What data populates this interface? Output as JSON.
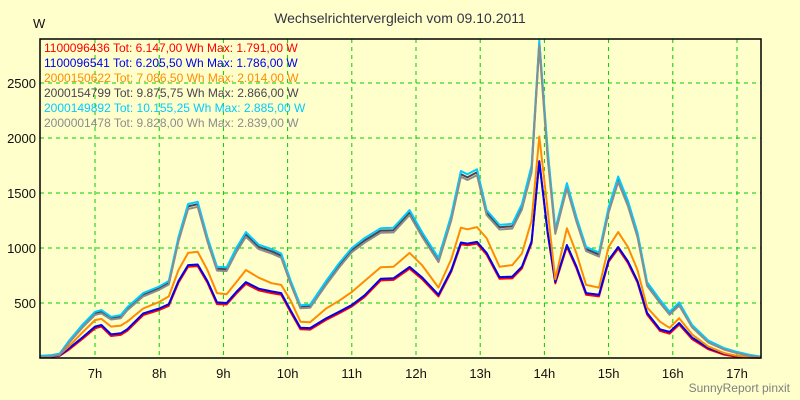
{
  "page": {
    "background": "#FFFFCC",
    "footer_credit": "SunnyReport pinxit",
    "footer_color": "#808080"
  },
  "chart_data": {
    "type": "line",
    "title": "Wechselrichtervergleich vom 09.10.2011",
    "title_color": "#333344",
    "ylabel": "W",
    "xlabel": "",
    "grid": true,
    "grid_color": "#00CC00",
    "frame_color": "#000000",
    "legend_position": "top-left-inside",
    "xlim": [
      6.143,
      17.374
    ],
    "ylim": [
      0,
      2900
    ],
    "x_ticks": [
      7,
      8,
      9,
      10,
      11,
      12,
      13,
      14,
      15,
      16,
      17
    ],
    "x_tick_labels": [
      "7h",
      "8h",
      "9h",
      "10h",
      "11h",
      "12h",
      "13h",
      "14h",
      "15h",
      "16h",
      "17h"
    ],
    "y_ticks": [
      500,
      1000,
      1500,
      2000,
      2500
    ],
    "y_tick_labels": [
      "500",
      "1000",
      "1500",
      "2000",
      "2500"
    ],
    "x_unit": "hour of day",
    "y_unit": "W",
    "x": [
      6.15,
      6.3,
      6.45,
      6.6,
      6.8,
      7.0,
      7.1,
      7.25,
      7.4,
      7.5,
      7.75,
      8.0,
      8.15,
      8.3,
      8.45,
      8.6,
      8.75,
      8.9,
      9.05,
      9.2,
      9.35,
      9.55,
      9.75,
      9.9,
      10.05,
      10.2,
      10.35,
      10.6,
      10.8,
      11.0,
      11.2,
      11.45,
      11.65,
      11.9,
      12.1,
      12.35,
      12.55,
      12.7,
      12.8,
      12.95,
      13.1,
      13.3,
      13.5,
      13.65,
      13.8,
      13.92,
      14.05,
      14.17,
      14.35,
      14.5,
      14.65,
      14.85,
      15.0,
      15.15,
      15.3,
      15.45,
      15.6,
      15.8,
      15.95,
      16.1,
      16.3,
      16.55,
      16.8,
      17.0,
      17.2,
      17.35
    ],
    "series": [
      {
        "name": "1100096436",
        "legend_label": "1100096436 Tot: 6.147,00 Wh Max: 1.791,00 W",
        "total_wh": "6.147,00",
        "max_w": "1.791,00",
        "color": "#FF0000",
        "values": [
          5,
          9,
          20,
          78,
          172,
          270,
          286,
          200,
          210,
          246,
          390,
          436,
          475,
          685,
          830,
          835,
          685,
          490,
          486,
          585,
          674,
          615,
          590,
          575,
          415,
          262,
          258,
          346,
          405,
          468,
          555,
          705,
          710,
          812,
          715,
          560,
          785,
          1034,
          1025,
          1040,
          940,
          720,
          725,
          815,
          1045,
          1791,
          1135,
          678,
          1012,
          815,
          575,
          560,
          875,
          995,
          865,
          685,
          395,
          246,
          222,
          304,
          172,
          80,
          30,
          10,
          4,
          2
        ]
      },
      {
        "name": "1100096541",
        "legend_label": "1100096541 Tot: 6.205,50 Wh Max: 1.786,00 W",
        "total_wh": "6.205,50",
        "max_w": "1.786,00",
        "color": "#0000EE",
        "values": [
          8,
          12,
          25,
          90,
          185,
          285,
          300,
          215,
          225,
          260,
          405,
          450,
          490,
          700,
          845,
          850,
          700,
          505,
          500,
          600,
          690,
          630,
          605,
          590,
          430,
          275,
          272,
          360,
          420,
          482,
          570,
          720,
          725,
          828,
          730,
          575,
          800,
          1050,
          1040,
          1055,
          955,
          735,
          740,
          830,
          1060,
          1786,
          1150,
          692,
          1027,
          830,
          590,
          575,
          890,
          1009,
          880,
          700,
          410,
          260,
          237,
          318,
          185,
          92,
          40,
          18,
          7,
          4
        ]
      },
      {
        "name": "2000150622",
        "legend_label": "2000150622 Tot: 7.086,50 Wh Max: 2.014,00 W",
        "total_wh": "7.086,50",
        "max_w": "2.014,00",
        "color": "#FF8C00",
        "values": [
          10,
          15,
          30,
          110,
          230,
          345,
          355,
          285,
          295,
          330,
          450,
          510,
          560,
          800,
          955,
          965,
          800,
          590,
          580,
          690,
          800,
          730,
          680,
          665,
          520,
          330,
          325,
          450,
          520,
          600,
          700,
          825,
          830,
          955,
          840,
          640,
          900,
          1185,
          1170,
          1190,
          1090,
          830,
          845,
          950,
          1250,
          2014,
          1350,
          715,
          1180,
          950,
          665,
          640,
          1010,
          1145,
          1010,
          800,
          460,
          330,
          275,
          362,
          215,
          105,
          45,
          20,
          8,
          5
        ]
      },
      {
        "name": "2000154799",
        "legend_label": "2000154799 Tot: 9.875,75 Wh Max: 2.866,00 W",
        "total_wh": "9.875,75",
        "max_w": "2.866,00",
        "color": "#4A4450",
        "values": [
          15,
          20,
          34,
          150,
          288,
          406,
          420,
          362,
          376,
          446,
          574,
          634,
          683,
          1080,
          1378,
          1398,
          1080,
          812,
          806,
          980,
          1124,
          1010,
          970,
          930,
          684,
          466,
          470,
          682,
          840,
          980,
          1068,
          1158,
          1162,
          1322,
          1118,
          890,
          1275,
          1672,
          1642,
          1688,
          1322,
          1188,
          1197,
          1375,
          1720,
          2866,
          1860,
          1148,
          1565,
          1258,
          990,
          940,
          1345,
          1625,
          1405,
          1118,
          672,
          514,
          406,
          490,
          288,
          150,
          82,
          48,
          22,
          12
        ]
      },
      {
        "name": "2000149892",
        "legend_label": "2000149892 Tot: 10.155,25 Wh Max: 2.885,00 W",
        "total_wh": "10.155,25",
        "max_w": "2.885,00",
        "color": "#00CCFF",
        "values": [
          20,
          25,
          40,
          160,
          300,
          420,
          435,
          375,
          390,
          460,
          590,
          650,
          700,
          1100,
          1400,
          1420,
          1100,
          830,
          825,
          1000,
          1145,
          1030,
          990,
          950,
          700,
          480,
          485,
          700,
          860,
          1000,
          1090,
          1180,
          1185,
          1345,
          1140,
          910,
          1300,
          1700,
          1670,
          1715,
          1345,
          1210,
          1220,
          1400,
          1750,
          2885,
          1900,
          1170,
          1590,
          1280,
          1010,
          960,
          1370,
          1650,
          1430,
          1140,
          690,
          530,
          420,
          505,
          300,
          160,
          90,
          55,
          28,
          15
        ]
      },
      {
        "name": "2000001478",
        "legend_label": "2000001478 Tot: 9.828,00 Wh Max: 2.839,00 W",
        "total_wh": "9.828,00",
        "max_w": "2.839,00",
        "color": "#8C8C8C",
        "values": [
          10,
          15,
          28,
          140,
          275,
          392,
          405,
          350,
          362,
          432,
          560,
          620,
          668,
          1060,
          1355,
          1375,
          1060,
          795,
          790,
          962,
          1102,
          990,
          950,
          912,
          668,
          452,
          456,
          665,
          822,
          962,
          1048,
          1138,
          1142,
          1300,
          1098,
          872,
          1252,
          1648,
          1618,
          1662,
          1300,
          1168,
          1176,
          1350,
          1690,
          2839,
          1820,
          1128,
          1542,
          1238,
          972,
          922,
          1322,
          1600,
          1382,
          1098,
          655,
          500,
          394,
          476,
          278,
          142,
          76,
          44,
          18,
          10
        ]
      }
    ],
    "draw_order": [
      0,
      1,
      2,
      3,
      4,
      5
    ]
  }
}
